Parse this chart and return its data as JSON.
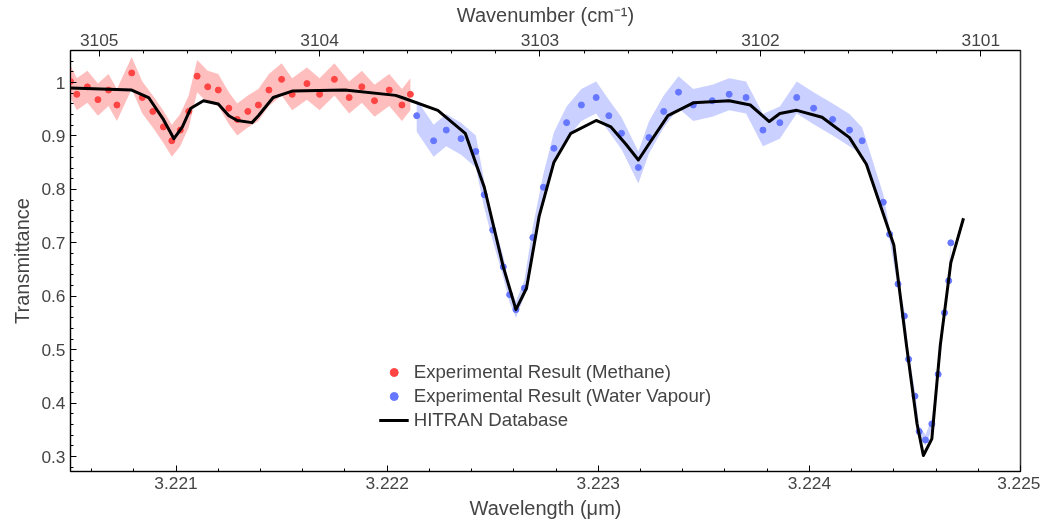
{
  "chart_data": {
    "type": "scatter",
    "xlabel": "Wavelength (μm)",
    "x2label": "Wavenumber (cm⁻¹)",
    "ylabel": "Transmittance",
    "xlim": [
      3.2205,
      3.225
    ],
    "xticks": [
      3.221,
      3.222,
      3.223,
      3.224,
      3.225
    ],
    "x2lim": [
      3105.13,
      3100.82
    ],
    "x2ticks": [
      3105,
      3104,
      3103,
      3102,
      3101
    ],
    "ylim": [
      0.272,
      1.06
    ],
    "yticks": [
      0.3,
      0.4,
      0.5,
      0.6,
      0.7,
      0.8,
      0.9,
      1.0
    ],
    "grid": false,
    "legend": "bottom",
    "marker": "circle",
    "series": [
      {
        "name": "Experimental Result (Methane)",
        "color": "#ff4444",
        "x": [
          3.2205,
          3.22053,
          3.22058,
          3.22063,
          3.22068,
          3.22072,
          3.22079,
          3.22084,
          3.22089,
          3.22094,
          3.22098,
          3.22102,
          3.22106,
          3.2211,
          3.22115,
          3.2212,
          3.22125,
          3.22129,
          3.22134,
          3.22139,
          3.22144,
          3.2215,
          3.22155,
          3.22162,
          3.22168,
          3.22175,
          3.22182,
          3.22188,
          3.22194,
          3.22201,
          3.22207,
          3.22211
        ],
        "values": [
          1.002,
          0.978,
          0.992,
          0.968,
          0.986,
          0.958,
          1.018,
          0.972,
          0.946,
          0.917,
          0.891,
          0.911,
          0.946,
          1.012,
          0.992,
          0.986,
          0.952,
          0.931,
          0.946,
          0.958,
          0.986,
          1.006,
          0.978,
          0.998,
          0.978,
          1.006,
          0.972,
          0.992,
          0.966,
          0.986,
          0.958,
          0.978
        ],
        "lower": [
          0.972,
          0.948,
          0.962,
          0.938,
          0.956,
          0.928,
          0.988,
          0.942,
          0.916,
          0.887,
          0.861,
          0.881,
          0.916,
          0.982,
          0.962,
          0.956,
          0.922,
          0.901,
          0.916,
          0.928,
          0.956,
          0.976,
          0.948,
          0.968,
          0.948,
          0.976,
          0.942,
          0.962,
          0.936,
          0.956,
          0.928,
          0.948
        ],
        "upper": [
          1.032,
          1.008,
          1.022,
          0.998,
          1.016,
          0.988,
          1.048,
          1.002,
          0.976,
          0.947,
          0.921,
          0.941,
          0.976,
          1.042,
          1.022,
          1.016,
          0.982,
          0.961,
          0.976,
          0.988,
          1.016,
          1.036,
          1.008,
          1.028,
          1.008,
          1.036,
          1.002,
          1.022,
          0.996,
          1.016,
          0.988,
          1.008
        ]
      },
      {
        "name": "Experimental Result (Water Vapour)",
        "color": "#6677ff",
        "x": [
          3.22214,
          3.22222,
          3.22228,
          3.22235,
          3.22242,
          3.22246,
          3.2225,
          3.22255,
          3.22258,
          3.22261,
          3.22265,
          3.22269,
          3.22274,
          3.22279,
          3.22285,
          3.22292,
          3.22299,
          3.22305,
          3.22311,
          3.22319,
          3.22324,
          3.22331,
          3.22338,
          3.22345,
          3.22354,
          3.22362,
          3.2237,
          3.22378,
          3.22386,
          3.22394,
          3.22402,
          3.22411,
          3.22419,
          3.22425,
          3.22435,
          3.22438,
          3.22442,
          3.22445,
          3.22447,
          3.2245,
          3.22452,
          3.22455,
          3.22458,
          3.22461,
          3.22464,
          3.22466,
          3.22467
        ],
        "values": [
          0.938,
          0.891,
          0.911,
          0.895,
          0.871,
          0.79,
          0.724,
          0.655,
          0.603,
          0.575,
          0.615,
          0.71,
          0.804,
          0.877,
          0.925,
          0.958,
          0.972,
          0.938,
          0.905,
          0.841,
          0.897,
          0.946,
          0.982,
          0.958,
          0.966,
          0.978,
          0.972,
          0.911,
          0.925,
          0.972,
          0.952,
          0.931,
          0.911,
          0.891,
          0.776,
          0.716,
          0.623,
          0.563,
          0.482,
          0.413,
          0.347,
          0.331,
          0.361,
          0.454,
          0.569,
          0.629,
          0.7
        ],
        "lower": [
          0.908,
          0.861,
          0.881,
          0.865,
          0.841,
          0.765,
          0.704,
          0.635,
          0.588,
          0.56,
          0.6,
          0.69,
          0.779,
          0.847,
          0.895,
          0.928,
          0.942,
          0.908,
          0.875,
          0.811,
          0.867,
          0.916,
          0.952,
          0.928,
          0.936,
          0.948,
          0.942,
          0.881,
          0.895,
          0.942,
          0.922,
          0.901,
          0.881,
          0.866,
          0.761,
          0.706,
          0.613,
          0.553,
          0.472,
          0.403,
          0.337,
          0.321,
          0.351,
          0.444,
          0.559,
          0.619,
          0.69
        ],
        "upper": [
          0.968,
          0.921,
          0.941,
          0.925,
          0.901,
          0.815,
          0.744,
          0.675,
          0.618,
          0.59,
          0.63,
          0.73,
          0.829,
          0.907,
          0.955,
          0.988,
          1.002,
          0.968,
          0.935,
          0.871,
          0.927,
          0.976,
          1.012,
          0.988,
          0.996,
          1.008,
          1.002,
          0.941,
          0.955,
          1.002,
          0.982,
          0.961,
          0.941,
          0.916,
          0.791,
          0.726,
          0.633,
          0.573,
          0.492,
          0.423,
          0.357,
          0.341,
          0.371,
          0.464,
          0.579,
          0.639,
          0.71
        ]
      },
      {
        "name": "HITRAN Database",
        "type": "line",
        "color": "#000000",
        "marker": "none",
        "line_style": "solid",
        "x": [
          3.2205,
          3.22079,
          3.22087,
          3.22094,
          3.22099,
          3.22103,
          3.22107,
          3.22113,
          3.2212,
          3.22125,
          3.22129,
          3.22136,
          3.22139,
          3.22146,
          3.22155,
          3.2218,
          3.22204,
          3.22207,
          3.22224,
          3.22237,
          3.22246,
          3.22255,
          3.22261,
          3.22266,
          3.22272,
          3.22279,
          3.22287,
          3.22299,
          3.22306,
          3.22313,
          3.22319,
          3.22324,
          3.22333,
          3.22345,
          3.22362,
          3.22372,
          3.22381,
          3.22386,
          3.22394,
          3.22406,
          3.22419,
          3.22427,
          3.2244,
          3.22446,
          3.22451,
          3.22454,
          3.22458,
          3.22462,
          3.22467,
          3.22473
        ],
        "values": [
          0.99,
          0.986,
          0.972,
          0.931,
          0.895,
          0.917,
          0.952,
          0.966,
          0.96,
          0.938,
          0.929,
          0.925,
          0.938,
          0.972,
          0.984,
          0.986,
          0.976,
          0.972,
          0.948,
          0.905,
          0.804,
          0.655,
          0.575,
          0.615,
          0.75,
          0.851,
          0.905,
          0.929,
          0.917,
          0.885,
          0.855,
          0.885,
          0.938,
          0.962,
          0.966,
          0.958,
          0.927,
          0.942,
          0.948,
          0.935,
          0.897,
          0.847,
          0.696,
          0.508,
          0.361,
          0.302,
          0.333,
          0.508,
          0.663,
          0.746
        ]
      }
    ]
  }
}
